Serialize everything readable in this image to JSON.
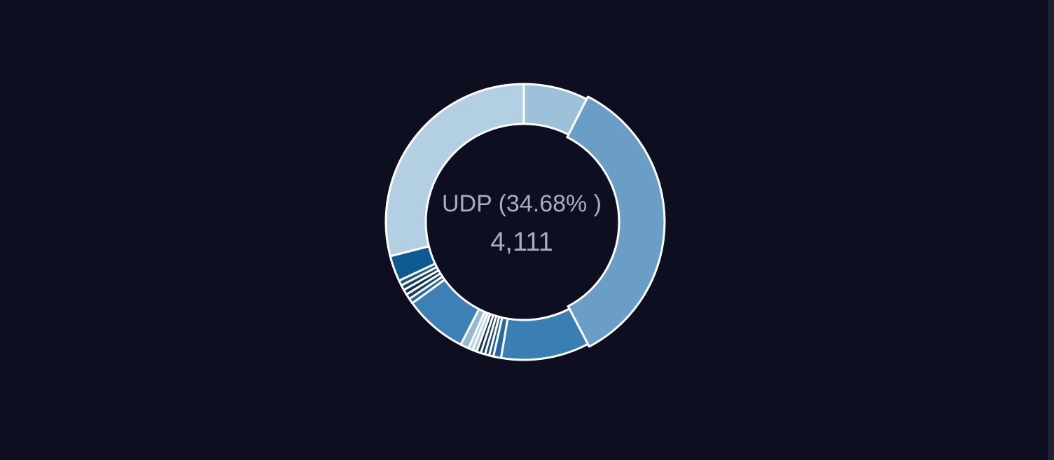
{
  "chart_data": {
    "type": "donut",
    "highlight": {
      "label": "UDP (34.68% )",
      "value": "4,111"
    },
    "slices": [
      {
        "value": 7.5,
        "color": "#9dc1db"
      },
      {
        "value": 34.68,
        "color": "#6b9ec6",
        "active": true
      },
      {
        "value": 10.3,
        "color": "#3a7fb4"
      },
      {
        "value": 0.9,
        "color": "#2169a5"
      },
      {
        "value": 0.5,
        "color": "#1d5c8f"
      },
      {
        "value": 0.5,
        "color": "#174d77"
      },
      {
        "value": 0.5,
        "color": "#11395a"
      },
      {
        "value": 0.5,
        "color": "#0f3150"
      },
      {
        "value": 0.5,
        "color": "#a6c8e1"
      },
      {
        "value": 0.5,
        "color": "#b4d0e5"
      },
      {
        "value": 1.0,
        "color": "#93b9d6"
      },
      {
        "value": 7.4,
        "color": "#3c80b5"
      },
      {
        "value": 0.6,
        "color": "#1f67a3"
      },
      {
        "value": 0.6,
        "color": "#163f62"
      },
      {
        "value": 0.6,
        "color": "#11314f"
      },
      {
        "value": 0.6,
        "color": "#15416a"
      },
      {
        "value": 0.6,
        "color": "#1a5a8f"
      },
      {
        "value": 3.0,
        "color": "#0e5a93"
      },
      {
        "value": 28.9,
        "color": "#b3cfe3"
      }
    ]
  }
}
